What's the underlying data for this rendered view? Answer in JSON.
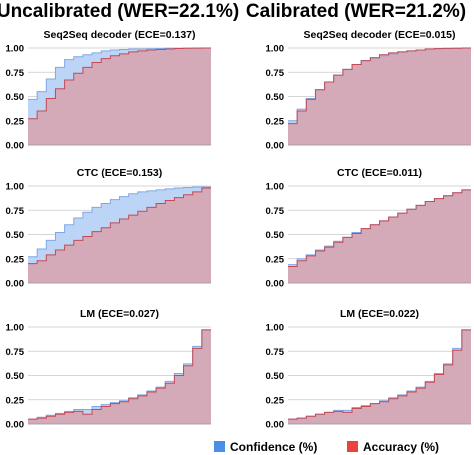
{
  "columns": [
    {
      "title": "Uncalibrated (WER=22.1%)"
    },
    {
      "title": "Calibrated (WER=21.2%)"
    }
  ],
  "legend": {
    "placement": "bottom-right",
    "items": [
      {
        "label": "Confidence (%)",
        "color": "#4a8fe7"
      },
      {
        "label": "Accuracy (%)",
        "color": "#e8433c"
      }
    ]
  },
  "colors": {
    "confidence_fill": "#bcd4f6",
    "overlap_fill": "#d6a5b2",
    "accuracy_line": "#c44a55",
    "confidence_line": "#7fa8e6",
    "grid": "#c9c9c9"
  },
  "chart_data": [
    {
      "type": "area",
      "column": 0,
      "row": 0,
      "title": "Seq2Seq decoder (ECE=0.137)",
      "ylim": [
        0,
        1
      ],
      "yticks": [
        "0.00",
        "0.25",
        "0.50",
        "0.75",
        "1.00"
      ],
      "bins": 20,
      "grid": true,
      "series": [
        {
          "name": "Confidence (%)",
          "values": [
            0.47,
            0.55,
            0.68,
            0.8,
            0.88,
            0.91,
            0.93,
            0.95,
            0.97,
            0.98,
            0.985,
            0.99,
            0.99,
            0.992,
            0.995,
            0.997,
            0.998,
            0.999,
            1.0,
            1.0
          ]
        },
        {
          "name": "Accuracy (%)",
          "values": [
            0.27,
            0.35,
            0.48,
            0.58,
            0.67,
            0.74,
            0.8,
            0.85,
            0.89,
            0.92,
            0.94,
            0.96,
            0.97,
            0.98,
            0.985,
            0.99,
            0.995,
            0.997,
            0.999,
            1.0
          ]
        }
      ]
    },
    {
      "type": "area",
      "column": 1,
      "row": 0,
      "title": "Seq2Seq decoder (ECE=0.015)",
      "ylim": [
        0,
        1
      ],
      "yticks": [
        "0.00",
        "0.25",
        "0.50",
        "0.75",
        "1.00"
      ],
      "bins": 20,
      "grid": true,
      "series": [
        {
          "name": "Confidence (%)",
          "values": [
            0.25,
            0.37,
            0.48,
            0.57,
            0.65,
            0.72,
            0.78,
            0.83,
            0.87,
            0.9,
            0.92,
            0.94,
            0.96,
            0.97,
            0.98,
            0.99,
            0.993,
            0.996,
            0.998,
            1.0
          ]
        },
        {
          "name": "Accuracy (%)",
          "values": [
            0.22,
            0.35,
            0.47,
            0.57,
            0.65,
            0.72,
            0.78,
            0.83,
            0.87,
            0.9,
            0.93,
            0.95,
            0.96,
            0.97,
            0.98,
            0.99,
            0.994,
            0.996,
            0.998,
            1.0
          ]
        }
      ]
    },
    {
      "type": "area",
      "column": 0,
      "row": 1,
      "title": "CTC (ECE=0.153)",
      "ylim": [
        0,
        1
      ],
      "yticks": [
        "0.00",
        "0.25",
        "0.50",
        "0.75",
        "1.00"
      ],
      "bins": 20,
      "grid": true,
      "series": [
        {
          "name": "Confidence (%)",
          "values": [
            0.27,
            0.35,
            0.44,
            0.52,
            0.6,
            0.67,
            0.73,
            0.78,
            0.82,
            0.86,
            0.89,
            0.92,
            0.94,
            0.95,
            0.96,
            0.97,
            0.98,
            0.985,
            0.99,
            0.99
          ]
        },
        {
          "name": "Accuracy (%)",
          "values": [
            0.2,
            0.23,
            0.29,
            0.34,
            0.39,
            0.44,
            0.48,
            0.53,
            0.57,
            0.62,
            0.66,
            0.7,
            0.74,
            0.78,
            0.82,
            0.85,
            0.88,
            0.91,
            0.94,
            0.98
          ]
        }
      ]
    },
    {
      "type": "area",
      "column": 1,
      "row": 1,
      "title": "CTC (ECE=0.011)",
      "ylim": [
        0,
        1
      ],
      "yticks": [
        "0.00",
        "0.25",
        "0.50",
        "0.75",
        "1.00"
      ],
      "bins": 20,
      "grid": true,
      "series": [
        {
          "name": "Confidence (%)",
          "values": [
            0.19,
            0.25,
            0.29,
            0.34,
            0.38,
            0.43,
            0.47,
            0.52,
            0.56,
            0.6,
            0.64,
            0.68,
            0.72,
            0.76,
            0.8,
            0.84,
            0.87,
            0.9,
            0.93,
            0.96
          ]
        },
        {
          "name": "Accuracy (%)",
          "values": [
            0.17,
            0.23,
            0.28,
            0.33,
            0.37,
            0.42,
            0.47,
            0.51,
            0.56,
            0.6,
            0.64,
            0.68,
            0.72,
            0.76,
            0.8,
            0.84,
            0.87,
            0.9,
            0.93,
            0.96
          ]
        }
      ]
    },
    {
      "type": "area",
      "column": 0,
      "row": 2,
      "title": "LM (ECE=0.027)",
      "ylim": [
        0,
        1
      ],
      "yticks": [
        "0.00",
        "0.25",
        "0.50",
        "0.75",
        "1.00"
      ],
      "bins": 20,
      "grid": true,
      "series": [
        {
          "name": "Confidence (%)",
          "values": [
            0.05,
            0.07,
            0.09,
            0.11,
            0.13,
            0.15,
            0.15,
            0.18,
            0.2,
            0.22,
            0.24,
            0.27,
            0.3,
            0.34,
            0.38,
            0.44,
            0.52,
            0.62,
            0.8,
            0.97
          ]
        },
        {
          "name": "Accuracy (%)",
          "values": [
            0.05,
            0.06,
            0.08,
            0.1,
            0.12,
            0.13,
            0.1,
            0.15,
            0.18,
            0.21,
            0.23,
            0.26,
            0.29,
            0.33,
            0.37,
            0.42,
            0.5,
            0.6,
            0.78,
            0.97
          ]
        }
      ]
    },
    {
      "type": "area",
      "column": 1,
      "row": 2,
      "title": "LM (ECE=0.022)",
      "ylim": [
        0,
        1
      ],
      "yticks": [
        "0.00",
        "0.25",
        "0.50",
        "0.75",
        "1.00"
      ],
      "bins": 20,
      "grid": true,
      "series": [
        {
          "name": "Confidence (%)",
          "values": [
            0.05,
            0.06,
            0.08,
            0.1,
            0.12,
            0.14,
            0.14,
            0.17,
            0.19,
            0.21,
            0.24,
            0.27,
            0.3,
            0.34,
            0.38,
            0.44,
            0.52,
            0.62,
            0.78,
            0.97
          ]
        },
        {
          "name": "Accuracy (%)",
          "values": [
            0.05,
            0.06,
            0.08,
            0.1,
            0.12,
            0.13,
            0.12,
            0.16,
            0.18,
            0.21,
            0.23,
            0.26,
            0.29,
            0.33,
            0.37,
            0.43,
            0.51,
            0.61,
            0.76,
            0.97
          ]
        }
      ]
    }
  ]
}
